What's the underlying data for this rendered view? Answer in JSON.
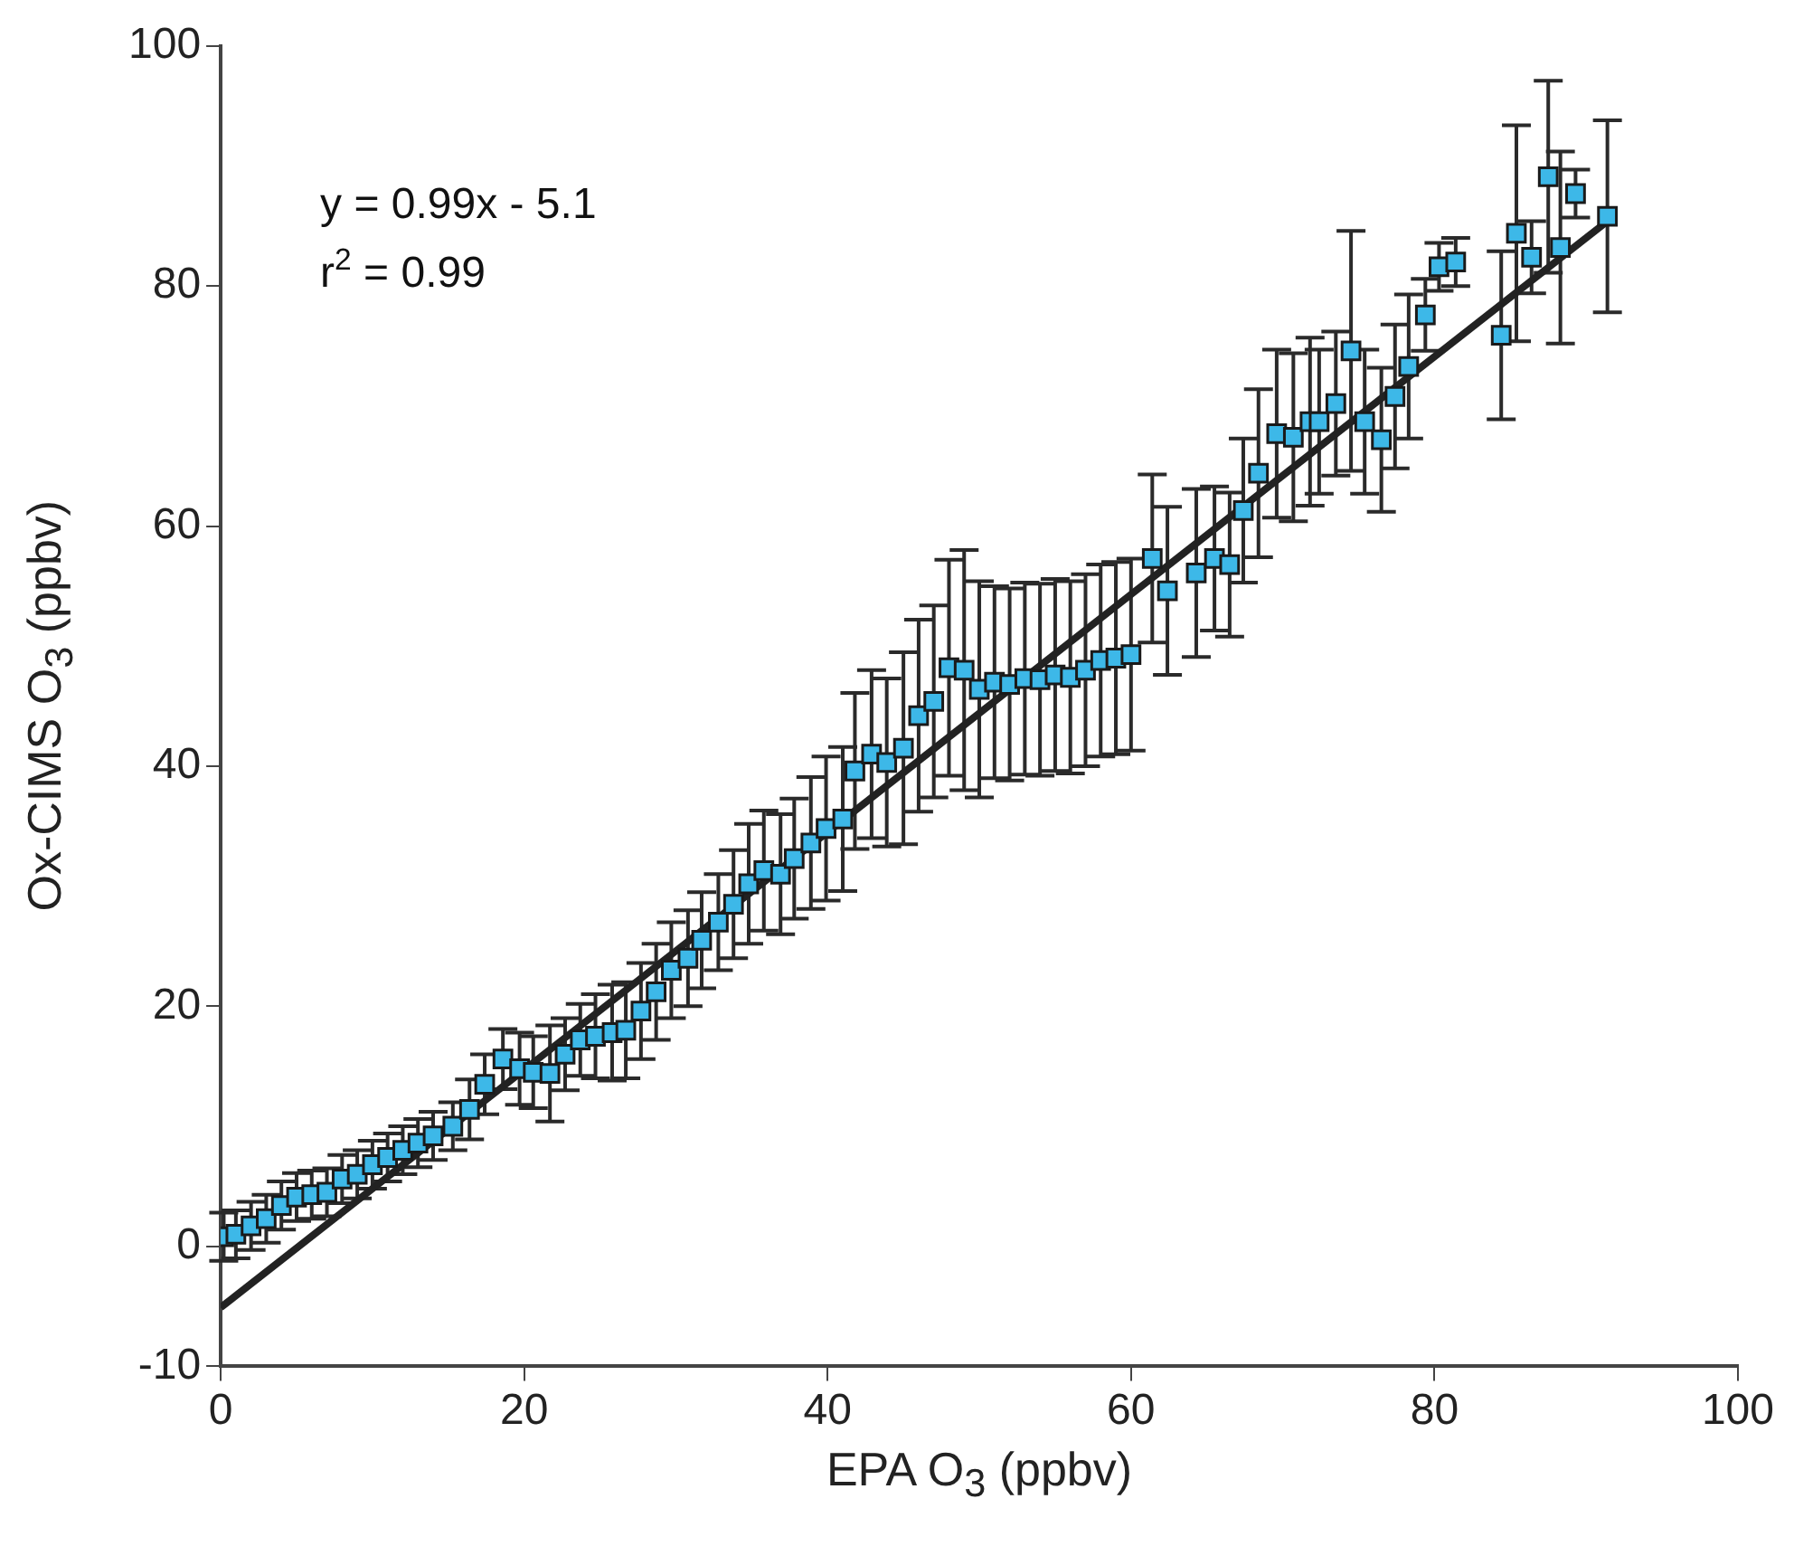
{
  "chart_data": {
    "type": "scatter",
    "xlabel": "EPA O$_{3}$ (ppbv)",
    "ylabel": "Ox-CIMS O$_{3}$ (ppbv)",
    "annotations": [
      "y = 0.99x - 5.1",
      "r$^{2}$ = 0.99"
    ],
    "xlim": [
      0,
      100
    ],
    "xticks": [
      0,
      20,
      40,
      60,
      80,
      100
    ],
    "ylim": [
      -10,
      100
    ],
    "yticks": [
      -10,
      0,
      20,
      40,
      60,
      80,
      100
    ],
    "grid": false,
    "legend": false,
    "marker": "square",
    "series": [
      {
        "color": "#3db8e8",
        "x": [
          0.2,
          1,
          2,
          3,
          4,
          5,
          6,
          7,
          8,
          9,
          10,
          11,
          12,
          13,
          14,
          15.3,
          16.4,
          17.4,
          18.6,
          19.7,
          20.6,
          21.7,
          22.7,
          23.7,
          24.7,
          25.8,
          26.7,
          27.7,
          28.7,
          29.7,
          30.8,
          31.7,
          32.8,
          33.8,
          34.8,
          35.8,
          36.9,
          37.8,
          38.9,
          39.9,
          41,
          41.8,
          42.9,
          43.9,
          45,
          46,
          47,
          48,
          49,
          50,
          51,
          52,
          53,
          54,
          55,
          56,
          57,
          58,
          59,
          60,
          61.4,
          62.4,
          64.3,
          65.5,
          66.5,
          67.4,
          68.4,
          69.6,
          70.7,
          71.8,
          72.4,
          73.5,
          74.5,
          75.4,
          76.5,
          77.4,
          78.3,
          79.4,
          80.3,
          81.4,
          84.4,
          85.4,
          86.4,
          87.5,
          88.3,
          89.3,
          91.4
        ],
        "values": [
          0.8,
          1.0,
          1.7,
          2.3,
          3.4,
          4.1,
          4.3,
          4.5,
          5.6,
          6.0,
          6.8,
          7.4,
          8.0,
          8.6,
          9.2,
          10.0,
          11.4,
          13.5,
          15.6,
          14.8,
          14.5,
          14.4,
          16.0,
          17.2,
          17.5,
          17.8,
          18.0,
          19.6,
          21.2,
          23.0,
          24.0,
          25.5,
          27.0,
          28.5,
          30.2,
          31.3,
          31.0,
          32.3,
          33.6,
          34.8,
          35.6,
          39.6,
          41.0,
          40.3,
          41.5,
          44.2,
          45.4,
          48.2,
          48.0,
          46.4,
          47.0,
          46.8,
          47.3,
          47.2,
          47.6,
          47.4,
          48.0,
          48.8,
          49.0,
          49.3,
          57.3,
          54.6,
          56.1,
          57.3,
          56.8,
          61.3,
          64.4,
          67.7,
          67.4,
          68.7,
          68.7,
          70.2,
          74.6,
          68.7,
          67.2,
          70.8,
          73.3,
          77.6,
          81.6,
          82.0,
          75.9,
          84.4,
          82.4,
          89.1,
          83.2,
          87.7,
          85.8
        ],
        "errors": [
          2,
          2,
          2,
          2,
          2,
          2,
          2,
          2,
          2,
          2,
          2,
          2,
          2,
          2,
          2,
          2,
          2.5,
          2.5,
          2.5,
          3,
          3,
          4,
          3,
          3,
          3.5,
          4,
          4,
          4,
          4,
          4,
          4,
          4,
          4,
          4.5,
          5,
          5,
          5,
          5,
          5.5,
          6,
          6,
          6.5,
          7,
          7,
          8,
          8,
          8,
          9,
          10,
          9,
          8,
          8,
          8,
          8,
          8,
          8,
          8,
          8,
          8,
          8,
          7,
          7,
          7,
          6,
          6,
          6,
          7,
          7,
          7,
          7,
          6,
          6,
          10,
          6,
          6,
          6,
          6,
          3,
          2,
          2,
          7,
          9,
          3,
          8,
          8,
          2,
          8
        ]
      },
      {
        "type": "line",
        "color": "#222222",
        "marker": "none",
        "x": [
          0,
          91.4
        ],
        "values": [
          -5.1,
          85.4
        ]
      }
    ]
  }
}
